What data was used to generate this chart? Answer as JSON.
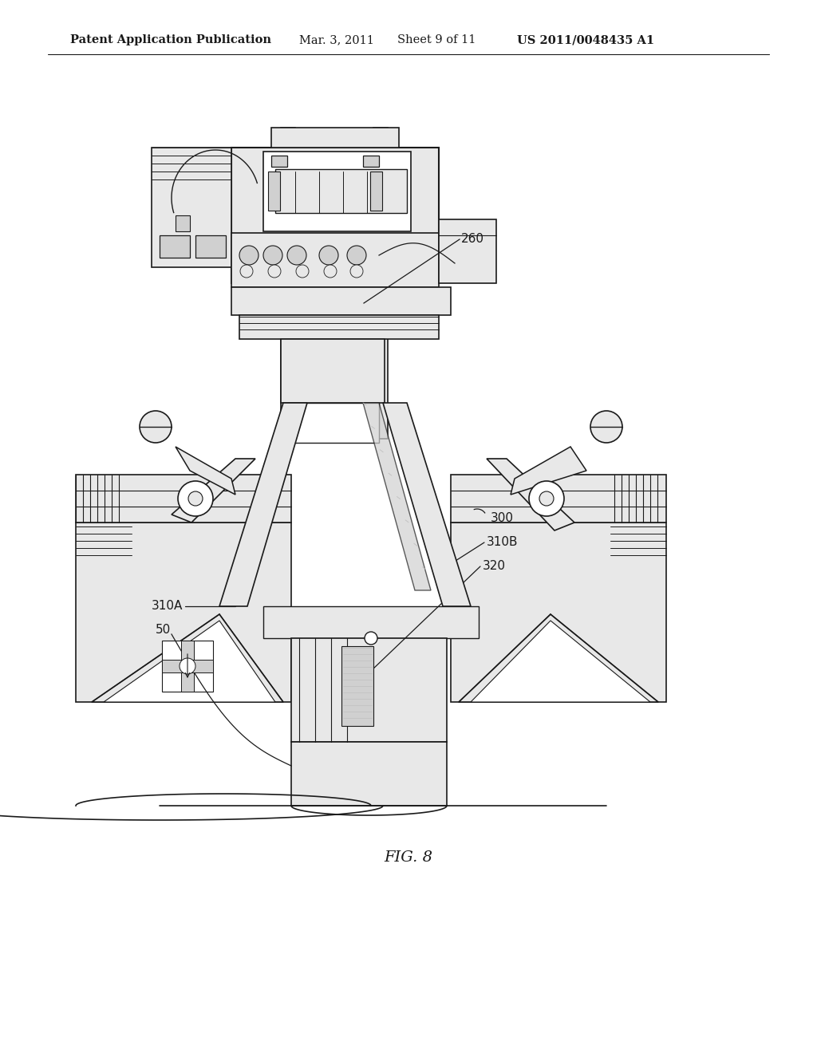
{
  "bg_color": "#ffffff",
  "lc": "#1a1a1a",
  "gray1": "#e8e8e8",
  "gray2": "#d0d0d0",
  "gray3": "#b8b8b8",
  "hatch_gray": "#c0c0c0",
  "header_text": "Patent Application Publication",
  "header_date": "Mar. 3, 2011",
  "header_sheet": "Sheet 9 of 11",
  "header_patent": "US 2011/0048435 A1",
  "fig_label": "FIG. 8"
}
